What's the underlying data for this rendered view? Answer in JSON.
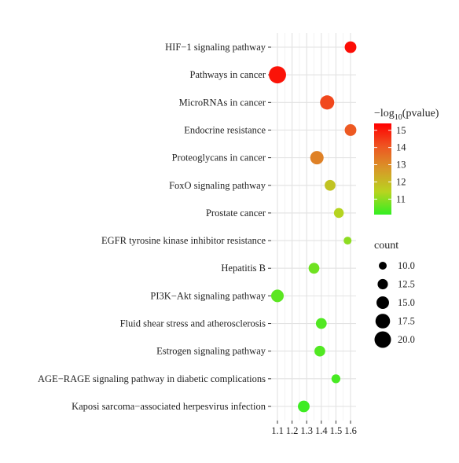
{
  "chart_data": {
    "type": "scatter",
    "title": "",
    "xlabel": "",
    "ylabel": "",
    "xlim": [
      1.1,
      1.6
    ],
    "x_ticks": [
      1.1,
      1.2,
      1.3,
      1.4,
      1.5,
      1.6
    ],
    "x_tick_labels": [
      "1.1",
      "1.2",
      "1.3",
      "1.4",
      "1.5",
      "1.6"
    ],
    "grid": true,
    "categories": [
      "HIF−1 signaling pathway",
      "Pathways in cancer",
      "MicroRNAs in cancer",
      "Endocrine resistance",
      "Proteoglycans in cancer",
      "FoxO signaling pathway",
      "Prostate cancer",
      "EGFR tyrosine kinase inhibitor resistance",
      "Hepatitis B",
      "PI3K−Akt signaling pathway",
      "Fluid shear stress and atherosclerosis",
      "Estrogen signaling pathway",
      "AGE−RAGE signaling pathway in diabetic complications",
      "Kaposi sarcoma−associated herpesvirus infection"
    ],
    "points": [
      {
        "category": "HIF−1 signaling pathway",
        "x": 1.6,
        "count": 14,
        "neg_log10_pvalue": 15.2
      },
      {
        "category": "Pathways in cancer",
        "x": 1.1,
        "count": 21,
        "neg_log10_pvalue": 15.1
      },
      {
        "category": "MicroRNAs in cancer",
        "x": 1.44,
        "count": 17,
        "neg_log10_pvalue": 14.3
      },
      {
        "category": "Endocrine resistance",
        "x": 1.6,
        "count": 14,
        "neg_log10_pvalue": 14.0
      },
      {
        "category": "Proteoglycans in cancer",
        "x": 1.37,
        "count": 16,
        "neg_log10_pvalue": 13.2
      },
      {
        "category": "FoxO signaling pathway",
        "x": 1.46,
        "count": 13,
        "neg_log10_pvalue": 11.8
      },
      {
        "category": "Prostate cancer",
        "x": 1.52,
        "count": 12,
        "neg_log10_pvalue": 11.4
      },
      {
        "category": "EGFR tyrosine kinase inhibitor resistance",
        "x": 1.58,
        "count": 10,
        "neg_log10_pvalue": 11.0
      },
      {
        "category": "Hepatitis B",
        "x": 1.35,
        "count": 13,
        "neg_log10_pvalue": 10.7
      },
      {
        "category": "PI3K−Akt signaling pathway",
        "x": 1.1,
        "count": 15,
        "neg_log10_pvalue": 10.5
      },
      {
        "category": "Fluid shear stress and atherosclerosis",
        "x": 1.4,
        "count": 13,
        "neg_log10_pvalue": 10.4
      },
      {
        "category": "Estrogen signaling pathway",
        "x": 1.39,
        "count": 13,
        "neg_log10_pvalue": 10.4
      },
      {
        "category": "AGE−RAGE signaling pathway in diabetic complications",
        "x": 1.5,
        "count": 11,
        "neg_log10_pvalue": 10.3
      },
      {
        "category": "Kaposi sarcoma−associated herpesvirus infection",
        "x": 1.28,
        "count": 14,
        "neg_log10_pvalue": 10.2
      }
    ],
    "color_legend": {
      "title_prefix": "−log",
      "title_subscript": "10",
      "title_suffix": "(pvalue)",
      "range": [
        10.1,
        15.4
      ],
      "ticks": [
        11,
        12,
        13,
        14,
        15
      ],
      "tick_labels": [
        "11",
        "12",
        "13",
        "14",
        "15"
      ],
      "colors": [
        "#33ee22",
        "#b8d420",
        "#d89828",
        "#ee5522",
        "#ff0000"
      ]
    },
    "size_legend": {
      "title": "count",
      "values": [
        10.0,
        12.5,
        15.0,
        17.5,
        20.0
      ],
      "labels": [
        "10.0",
        "12.5",
        "15.0",
        "17.5",
        "20.0"
      ],
      "size_range": [
        10,
        21
      ]
    },
    "legend_position": "right",
    "panel_background": "#ffffff",
    "grid_color": "#ebebeb",
    "point_stroke": "none"
  }
}
